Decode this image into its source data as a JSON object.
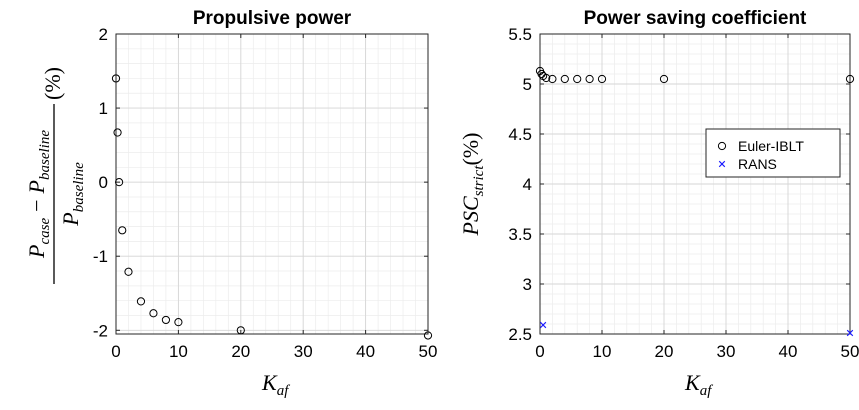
{
  "chart_data": [
    {
      "type": "scatter",
      "title": "Propulsive power",
      "xlabel": {
        "base": "K",
        "sub": "af"
      },
      "ylabel": {
        "numerator_a": {
          "base": "P",
          "sub": "case"
        },
        "minus": "−",
        "numerator_b": {
          "base": "P",
          "sub": "baseline"
        },
        "denominator": {
          "base": "P",
          "sub": "baseline"
        },
        "unit": "(%)"
      },
      "xlim": [
        0,
        50
      ],
      "ylim": [
        -2.05,
        2
      ],
      "xticks": [
        0,
        10,
        20,
        30,
        40,
        50
      ],
      "xtick_labels": [
        "0",
        "10",
        "20",
        "30",
        "40",
        "50"
      ],
      "yticks": [
        -2,
        -1,
        0,
        1,
        2
      ],
      "ytick_labels": [
        "-2",
        "-1",
        "0",
        "1",
        "2"
      ],
      "grid": true,
      "minor_grid": true,
      "series": [
        {
          "marker": "circle",
          "color": "#000000",
          "points": [
            {
              "x": 0,
              "y": 1.4
            },
            {
              "x": 0.25,
              "y": 0.67
            },
            {
              "x": 0.5,
              "y": 0.0
            },
            {
              "x": 1,
              "y": -0.65
            },
            {
              "x": 2,
              "y": -1.21
            },
            {
              "x": 4,
              "y": -1.61
            },
            {
              "x": 6,
              "y": -1.77
            },
            {
              "x": 8,
              "y": -1.86
            },
            {
              "x": 10,
              "y": -1.89
            },
            {
              "x": 20,
              "y": -2.0
            },
            {
              "x": 50,
              "y": -2.07
            }
          ]
        }
      ]
    },
    {
      "type": "scatter",
      "title": "Power saving coefficient",
      "xlabel": {
        "base": "K",
        "sub": "af"
      },
      "ylabel": {
        "base": "PSC",
        "sub": "strict",
        "unit": "(%)"
      },
      "xlim": [
        0,
        50
      ],
      "ylim": [
        2.5,
        5.5
      ],
      "xticks": [
        0,
        10,
        20,
        30,
        40,
        50
      ],
      "xtick_labels": [
        "0",
        "10",
        "20",
        "30",
        "40",
        "50"
      ],
      "yticks": [
        2.5,
        3,
        3.5,
        4,
        4.5,
        5,
        5.5
      ],
      "ytick_labels": [
        "2.5",
        "3",
        "3.5",
        "4",
        "4.5",
        "5",
        "5.5"
      ],
      "grid": true,
      "minor_grid": true,
      "legend_position": "top-right",
      "series": [
        {
          "name": "Euler-IBLT",
          "marker": "circle",
          "color": "#000000",
          "points": [
            {
              "x": 0,
              "y": 5.13
            },
            {
              "x": 0.25,
              "y": 5.1
            },
            {
              "x": 0.5,
              "y": 5.08
            },
            {
              "x": 1,
              "y": 5.06
            },
            {
              "x": 2,
              "y": 5.05
            },
            {
              "x": 4,
              "y": 5.05
            },
            {
              "x": 6,
              "y": 5.05
            },
            {
              "x": 8,
              "y": 5.05
            },
            {
              "x": 10,
              "y": 5.05
            },
            {
              "x": 20,
              "y": 5.05
            },
            {
              "x": 50,
              "y": 5.05
            }
          ]
        },
        {
          "name": "RANS",
          "marker": "x",
          "color": "#1a1aff",
          "points": [
            {
              "x": 0.5,
              "y": 2.59
            },
            {
              "x": 50,
              "y": 2.51
            }
          ]
        }
      ]
    }
  ]
}
